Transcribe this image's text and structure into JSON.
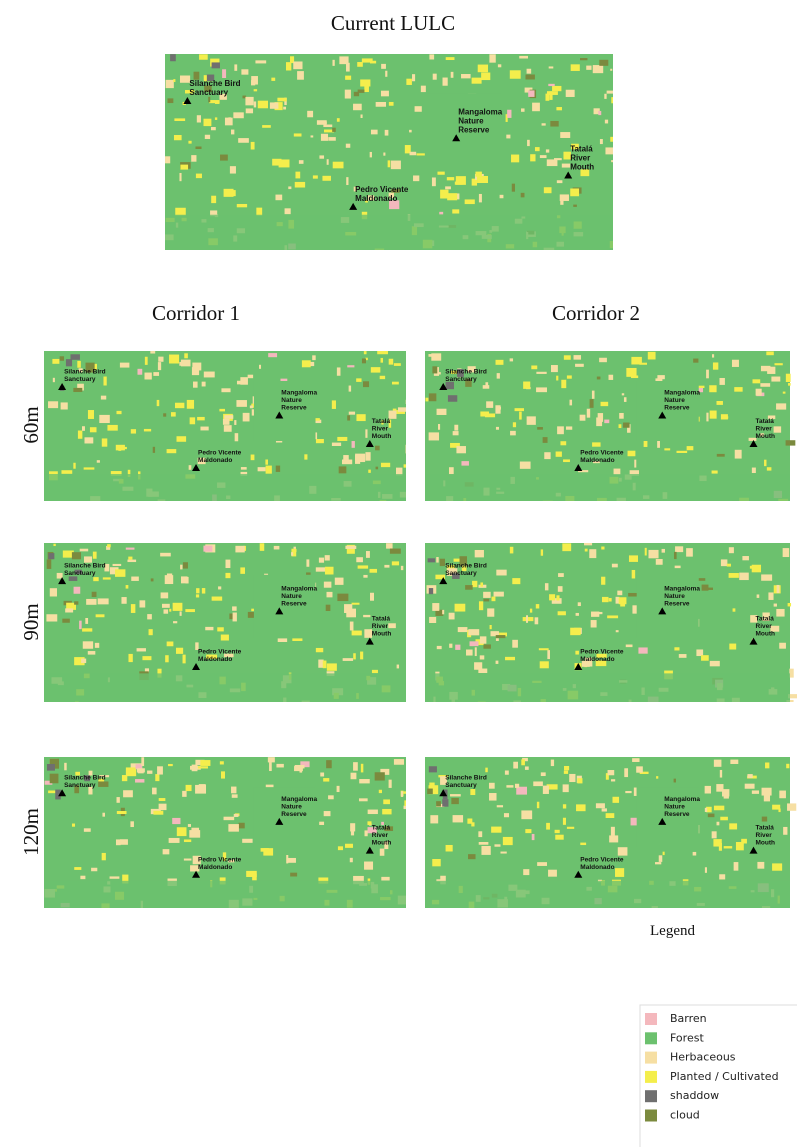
{
  "title": "Current LULC",
  "columns": [
    "Corridor 1",
    "Corridor 2"
  ],
  "rows": [
    "60m",
    "90m",
    "120m"
  ],
  "landmarks": [
    {
      "lines": [
        "Silanche Bird",
        "Sanctuary"
      ]
    },
    {
      "lines": [
        "Mangaloma",
        "Nature",
        "Reserve"
      ]
    },
    {
      "lines": [
        "Tatalá",
        "River",
        "Mouth"
      ]
    },
    {
      "lines": [
        "Pedro Vicente",
        "Maldonado"
      ]
    }
  ],
  "legend": {
    "title": "Legend",
    "items": [
      {
        "name": "Barren",
        "color": "#f4b8bd"
      },
      {
        "name": "Forest",
        "color": "#6cc16e"
      },
      {
        "name": "Herbaceous",
        "color": "#f6dfa3"
      },
      {
        "name": "Planted / Cultivated",
        "color": "#f4ee4c"
      },
      {
        "name": "shaddow",
        "color": "#6f6f6f"
      },
      {
        "name": "cloud",
        "color": "#7b8a3e"
      }
    ]
  }
}
